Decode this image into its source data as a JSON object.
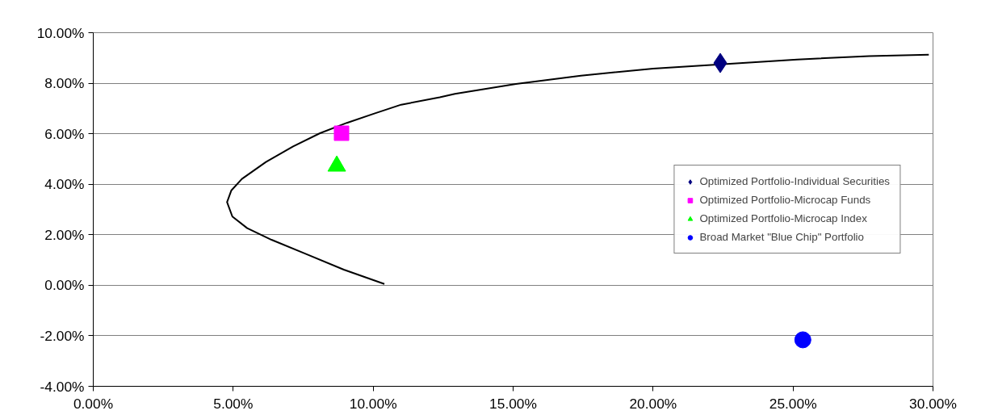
{
  "chart_data": {
    "type": "scatter",
    "xlim": [
      0,
      30
    ],
    "ylim": [
      -4,
      10
    ],
    "xticks": [
      {
        "value": 0,
        "label": "0.00%"
      },
      {
        "value": 5,
        "label": "5.00%"
      },
      {
        "value": 10,
        "label": "10.00%"
      },
      {
        "value": 15,
        "label": "15.00%"
      },
      {
        "value": 20,
        "label": "20.00%"
      },
      {
        "value": 25,
        "label": "25.00%"
      },
      {
        "value": 30,
        "label": "30.00%"
      }
    ],
    "yticks": [
      {
        "value": -4,
        "label": "-4.00%"
      },
      {
        "value": -2,
        "label": "-2.00%"
      },
      {
        "value": 0,
        "label": "0.00%"
      },
      {
        "value": 2,
        "label": "2.00%"
      },
      {
        "value": 4,
        "label": "4.00%"
      },
      {
        "value": 6,
        "label": "6.00%"
      },
      {
        "value": 8,
        "label": "8.00%"
      },
      {
        "value": 10,
        "label": "10.00%"
      }
    ],
    "grid": "y",
    "legend": "right",
    "series": [
      {
        "type": "line",
        "color": "#000000",
        "line_style": "solid",
        "x": [
          10.4,
          8.95,
          7.62,
          6.37,
          5.5,
          4.97,
          4.78,
          4.93,
          5.31,
          6.17,
          7.14,
          8.1,
          9.06,
          10.02,
          11.0,
          12.38,
          12.92,
          15.1,
          17.42,
          20.0,
          25.15,
          27.72,
          29.85
        ],
        "values": [
          0.05,
          0.62,
          1.23,
          1.8,
          2.26,
          2.72,
          3.29,
          3.75,
          4.21,
          4.88,
          5.5,
          6.02,
          6.43,
          6.79,
          7.15,
          7.44,
          7.58,
          7.97,
          8.3,
          8.58,
          8.94,
          9.07,
          9.13
        ]
      },
      {
        "name": "Optimized Portfolio-Individual Securities",
        "color": "#000080",
        "marker": "diamond",
        "x": [
          22.4
        ],
        "values": [
          8.8
        ]
      },
      {
        "name": "Optimized Portfolio-Microcap Funds",
        "color": "#ff00ff",
        "marker": "square",
        "x": [
          8.87
        ],
        "values": [
          6.02
        ]
      },
      {
        "name": "Optimized Portfolio-Microcap Index",
        "color": "#00ff00",
        "marker": "triangle",
        "x": [
          8.7
        ],
        "values": [
          4.72
        ]
      },
      {
        "name": "Broad Market \"Blue Chip\" Portfolio",
        "color": "#0000ff",
        "marker": "circle",
        "x": [
          25.35
        ],
        "values": [
          -2.16
        ]
      }
    ]
  }
}
